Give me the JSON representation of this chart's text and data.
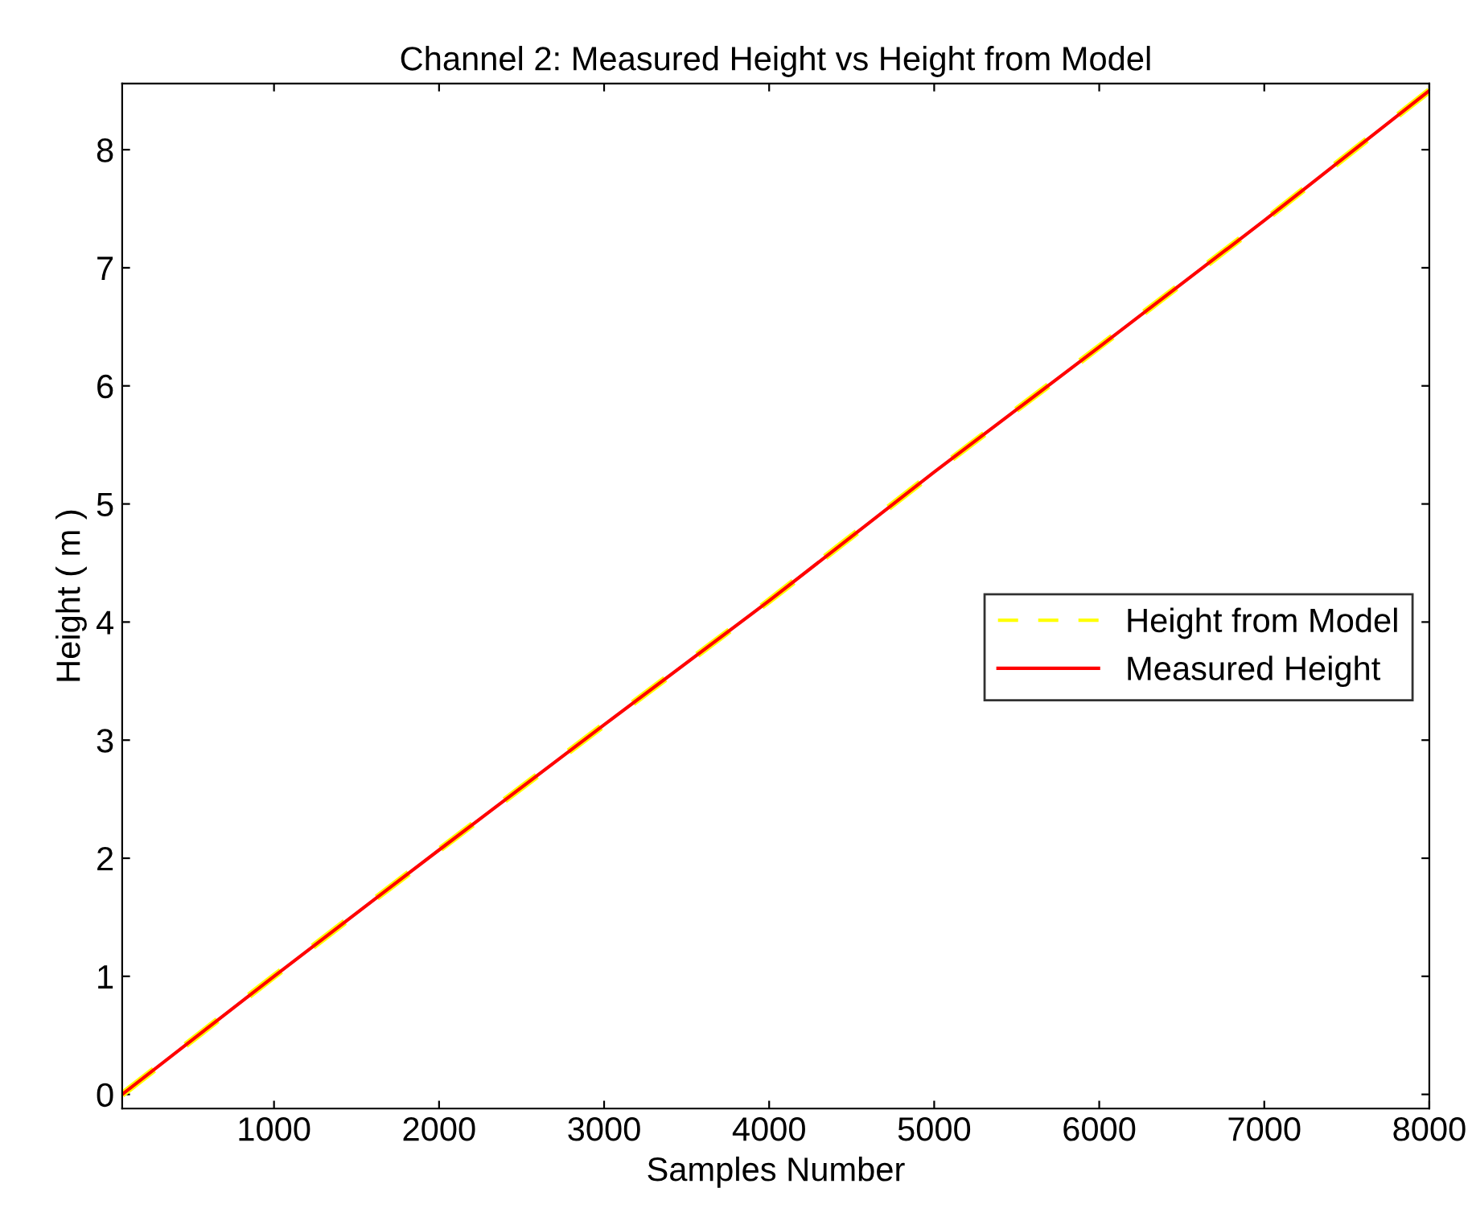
{
  "chart_data": {
    "type": "line",
    "title": "Channel 2: Measured Height vs Height from Model",
    "xlabel": "Samples Number",
    "ylabel": "Height ( m )",
    "x": [
      80,
      1000,
      2000,
      3000,
      4000,
      5000,
      6000,
      7000,
      8000
    ],
    "series": [
      {
        "name": "Height from Model",
        "color": "#ffff00",
        "line_style": "dashed",
        "values": [
          0.0,
          1.0,
          2.07,
          3.13,
          4.18,
          5.27,
          6.33,
          7.4,
          8.5
        ]
      },
      {
        "name": "Measured Height",
        "color": "#ff0000",
        "line_style": "solid",
        "values": [
          0.0,
          1.0,
          2.07,
          3.13,
          4.18,
          5.27,
          6.33,
          7.4,
          8.5
        ]
      }
    ],
    "xlim": [
      80,
      8000
    ],
    "ylim": [
      -0.12,
      8.56
    ],
    "xticks": [
      1000,
      2000,
      3000,
      4000,
      5000,
      6000,
      7000,
      8000
    ],
    "yticks": [
      0,
      1,
      2,
      3,
      4,
      5,
      6,
      7,
      8
    ],
    "grid": false,
    "legend": "right"
  }
}
